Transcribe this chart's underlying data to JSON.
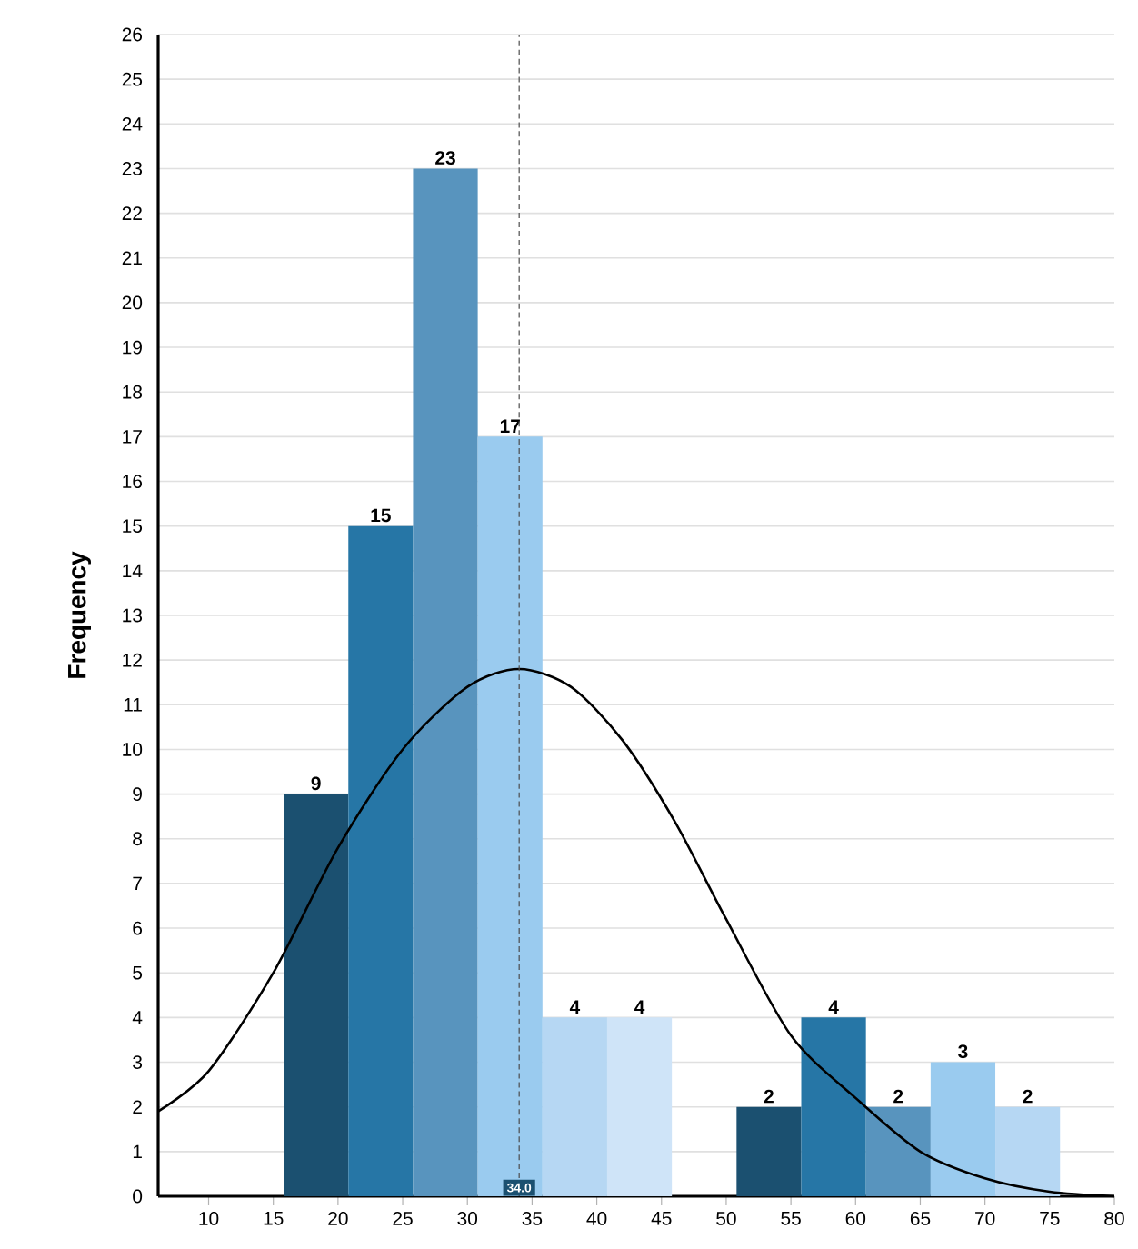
{
  "chart_data": {
    "type": "histogram",
    "ylabel": "Frequency",
    "bins": [
      15.8,
      20.8,
      25.8,
      30.8,
      35.8,
      40.8,
      45.8,
      50.8,
      55.8,
      60.8,
      65.8,
      70.8,
      75.8
    ],
    "values": [
      9,
      15,
      23,
      17,
      4,
      4,
      0,
      2,
      4,
      2,
      3,
      2
    ],
    "colors": [
      "#1b5070",
      "#2676a6",
      "#5894be",
      "#9acbef",
      "#b6d7f3",
      "#cfe4f8",
      "#cfe4f8",
      "#1b5070",
      "#2676a6",
      "#5894be",
      "#9acbef",
      "#b6d7f3"
    ],
    "value_labels": [
      "9",
      "15",
      "23",
      "17",
      "4",
      "4",
      null,
      "2",
      "4",
      "2",
      "3",
      "2"
    ],
    "series": [
      {
        "type": "line",
        "color": "#000000",
        "x": [
          6.1,
          10,
          15,
          20,
          25,
          30,
          34,
          38,
          42,
          46,
          50,
          55,
          60,
          65,
          70,
          75,
          80
        ],
        "values": [
          1.9,
          2.8,
          5.0,
          7.8,
          10.0,
          11.4,
          11.8,
          11.4,
          10.2,
          8.4,
          6.2,
          3.6,
          2.2,
          1.0,
          0.4,
          0.1,
          0.0
        ]
      }
    ],
    "ref_lines": [
      {
        "axis": "x",
        "value": 34.0,
        "label": "34.0",
        "line_style": "dashed"
      }
    ],
    "xlim": [
      6.1,
      80
    ],
    "ylim": [
      0,
      26
    ],
    "xticks": [
      10,
      15,
      20,
      25,
      30,
      35,
      40,
      45,
      50,
      55,
      60,
      65,
      70,
      75,
      80
    ],
    "yticks": [
      0,
      1,
      2,
      3,
      4,
      5,
      6,
      7,
      8,
      9,
      10,
      11,
      12,
      13,
      14,
      15,
      16,
      17,
      18,
      19,
      20,
      21,
      22,
      23,
      24,
      25,
      26
    ],
    "grid": "y"
  }
}
